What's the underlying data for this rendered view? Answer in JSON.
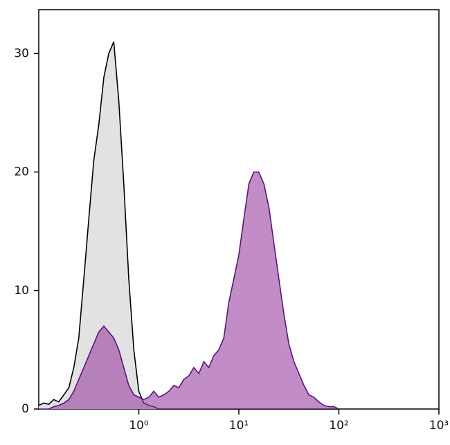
{
  "chart_data": {
    "type": "histogram-overlay",
    "x": [
      0.1,
      0.112,
      0.126,
      0.141,
      0.158,
      0.178,
      0.2,
      0.224,
      0.251,
      0.282,
      0.316,
      0.355,
      0.398,
      0.447,
      0.501,
      0.562,
      0.631,
      0.708,
      0.794,
      0.891,
      1,
      1.12,
      1.26,
      1.41,
      1.58,
      1.78,
      2,
      2.24,
      2.51,
      2.82,
      3.16,
      3.55,
      3.98,
      4.47,
      5.01,
      5.62,
      6.31,
      7.08,
      7.94,
      8.91,
      10,
      11.2,
      12.6,
      14.1,
      15.8,
      17.8,
      20,
      22.4,
      25.1,
      28.2,
      31.6,
      35.5,
      39.8,
      44.7,
      50.1,
      56.2,
      63.1,
      70.8,
      79.4,
      89.1,
      100
    ],
    "series": [
      {
        "color": "#000000",
        "fill": "#e2e2e2",
        "values": [
          0.3,
          0.5,
          0.4,
          0.8,
          0.6,
          1.2,
          1.8,
          3.5,
          6,
          11,
          16,
          21,
          24,
          28,
          30,
          31,
          26,
          19,
          11,
          5,
          1.5,
          0.5,
          0.3,
          0.2,
          0,
          0,
          0,
          0,
          0,
          0,
          0,
          0,
          0,
          0,
          0,
          0,
          0,
          0,
          0,
          0,
          0,
          0,
          0,
          0,
          0,
          0,
          0,
          0,
          0,
          0,
          0,
          0,
          0,
          0,
          0,
          0,
          0,
          0,
          0,
          0,
          0
        ]
      },
      {
        "color": "#5a1480",
        "fill": "#9a3fa0",
        "values": [
          0,
          0,
          0,
          0.2,
          0.3,
          0.5,
          0.8,
          1.5,
          2.5,
          3.5,
          4.5,
          5.5,
          6.5,
          7,
          6.5,
          6,
          5,
          3.5,
          2,
          1.2,
          1,
          0.8,
          1,
          1.5,
          1,
          1.2,
          1.5,
          2,
          1.8,
          2.5,
          2.8,
          3.5,
          3,
          4,
          3.5,
          4.5,
          5,
          6,
          9,
          11,
          13,
          16,
          19,
          20,
          20,
          19,
          17,
          14,
          11,
          8,
          5.5,
          4,
          3,
          2,
          1.2,
          1,
          0.6,
          0.3,
          0.2,
          0.2,
          0
        ]
      }
    ],
    "xscale": "log",
    "xlim": [
      0.1,
      1000
    ],
    "xticks": [
      {
        "value": 1,
        "label": "10⁰"
      },
      {
        "value": 10,
        "label": "10¹"
      },
      {
        "value": 100,
        "label": "10²"
      },
      {
        "value": 1000,
        "label": "10³"
      }
    ],
    "ylim": [
      0,
      33.7
    ],
    "yticks": [
      0,
      10,
      20,
      30
    ]
  }
}
